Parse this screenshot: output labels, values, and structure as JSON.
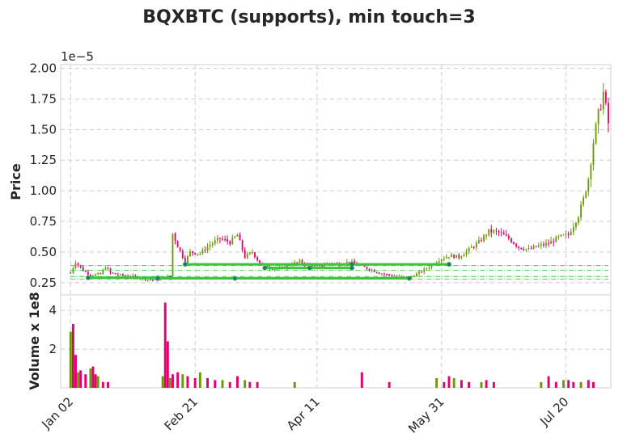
{
  "chart_data": {
    "type": "candlestick",
    "title": "BQXBTC (supports), min touch=3",
    "price_panel": {
      "ylabel": "Price",
      "exponent_label": "1e−5",
      "yticks": [
        0.25,
        0.5,
        0.75,
        1.0,
        1.25,
        1.5,
        1.75,
        2.0
      ],
      "ytick_labels": [
        "0.25",
        "0.50",
        "0.75",
        "1.00",
        "1.25",
        "1.50",
        "1.75",
        "2.00"
      ],
      "ylim": [
        0.15,
        2.03
      ],
      "grid": true
    },
    "volume_panel": {
      "ylabel": "Volume x 1e8",
      "yticks": [
        2,
        4
      ],
      "ytick_labels": [
        "2",
        "4"
      ],
      "ylim": [
        0,
        4.8
      ],
      "grid": true
    },
    "x_axis": {
      "tick_labels": [
        "Jan 02",
        "Feb 21",
        "Apr 11",
        "May 31",
        "Jul 20"
      ],
      "tick_days": [
        0,
        50,
        99,
        149,
        199
      ],
      "range_days": [
        -4,
        217
      ]
    },
    "colors": {
      "up": "#6a9a00",
      "down": "#e0006e",
      "support_line": "#3cc43c",
      "touch_point": "#1f6f8b",
      "level_line": "#3cc43c"
    },
    "support_levels": [
      {
        "from_day": 7,
        "to_day": 40,
        "price": 0.29,
        "touches": [
          7,
          35,
          40
        ]
      },
      {
        "from_day": 35,
        "to_day": 136,
        "price": 0.285,
        "touches": [
          35,
          66,
          136
        ]
      },
      {
        "from_day": 46,
        "to_day": 152,
        "price": 0.4,
        "touches": [
          46,
          113,
          152
        ]
      },
      {
        "from_day": 78,
        "to_day": 113,
        "price": 0.37,
        "touches": [
          78,
          96,
          113
        ]
      }
    ],
    "horizontal_levels": [
      0.39,
      0.35,
      0.3,
      0.28
    ],
    "price_path": [
      [
        0,
        0.33
      ],
      [
        2,
        0.42
      ],
      [
        5,
        0.35
      ],
      [
        8,
        0.31
      ],
      [
        12,
        0.32
      ],
      [
        14,
        0.38
      ],
      [
        16,
        0.33
      ],
      [
        20,
        0.31
      ],
      [
        25,
        0.3
      ],
      [
        30,
        0.28
      ],
      [
        34,
        0.27
      ],
      [
        37,
        0.29
      ],
      [
        40,
        0.3
      ],
      [
        41,
        0.65
      ],
      [
        43,
        0.55
      ],
      [
        46,
        0.42
      ],
      [
        48,
        0.5
      ],
      [
        52,
        0.49
      ],
      [
        56,
        0.56
      ],
      [
        60,
        0.61
      ],
      [
        64,
        0.58
      ],
      [
        67,
        0.64
      ],
      [
        70,
        0.46
      ],
      [
        73,
        0.5
      ],
      [
        76,
        0.41
      ],
      [
        80,
        0.37
      ],
      [
        84,
        0.36
      ],
      [
        88,
        0.4
      ],
      [
        92,
        0.42
      ],
      [
        96,
        0.39
      ],
      [
        100,
        0.38
      ],
      [
        104,
        0.41
      ],
      [
        108,
        0.4
      ],
      [
        112,
        0.42
      ],
      [
        116,
        0.39
      ],
      [
        120,
        0.36
      ],
      [
        124,
        0.33
      ],
      [
        128,
        0.31
      ],
      [
        132,
        0.3
      ],
      [
        136,
        0.29
      ],
      [
        140,
        0.33
      ],
      [
        144,
        0.38
      ],
      [
        148,
        0.44
      ],
      [
        152,
        0.47
      ],
      [
        156,
        0.46
      ],
      [
        160,
        0.52
      ],
      [
        164,
        0.58
      ],
      [
        168,
        0.67
      ],
      [
        172,
        0.66
      ],
      [
        176,
        0.61
      ],
      [
        180,
        0.54
      ],
      [
        184,
        0.52
      ],
      [
        188,
        0.55
      ],
      [
        192,
        0.57
      ],
      [
        196,
        0.62
      ],
      [
        200,
        0.64
      ],
      [
        202,
        0.72
      ],
      [
        204,
        0.8
      ],
      [
        206,
        0.93
      ],
      [
        208,
        1.1
      ],
      [
        210,
        1.4
      ],
      [
        212,
        1.62
      ],
      [
        214,
        1.8
      ],
      [
        216,
        1.55
      ]
    ],
    "volume_spikes": [
      [
        0,
        2.9
      ],
      [
        1,
        3.3
      ],
      [
        2,
        1.7
      ],
      [
        3,
        0.8
      ],
      [
        4,
        0.9
      ],
      [
        6,
        0.7
      ],
      [
        8,
        1.0
      ],
      [
        9,
        1.1
      ],
      [
        10,
        0.7
      ],
      [
        11,
        0.6
      ],
      [
        13,
        0.3
      ],
      [
        15,
        0.3
      ],
      [
        37,
        0.6
      ],
      [
        38,
        4.4
      ],
      [
        39,
        2.4
      ],
      [
        40,
        0.5
      ],
      [
        41,
        0.7
      ],
      [
        43,
        0.8
      ],
      [
        45,
        0.7
      ],
      [
        47,
        0.6
      ],
      [
        50,
        0.5
      ],
      [
        52,
        0.8
      ],
      [
        55,
        0.5
      ],
      [
        58,
        0.4
      ],
      [
        61,
        0.4
      ],
      [
        64,
        0.3
      ],
      [
        67,
        0.6
      ],
      [
        70,
        0.4
      ],
      [
        72,
        0.3
      ],
      [
        75,
        0.3
      ],
      [
        90,
        0.3
      ],
      [
        117,
        0.8
      ],
      [
        128,
        0.3
      ],
      [
        147,
        0.5
      ],
      [
        150,
        0.3
      ],
      [
        152,
        0.6
      ],
      [
        154,
        0.5
      ],
      [
        157,
        0.4
      ],
      [
        160,
        0.3
      ],
      [
        165,
        0.3
      ],
      [
        167,
        0.4
      ],
      [
        170,
        0.3
      ],
      [
        189,
        0.3
      ],
      [
        192,
        0.6
      ],
      [
        195,
        0.3
      ],
      [
        198,
        0.4
      ],
      [
        200,
        0.4
      ],
      [
        202,
        0.3
      ],
      [
        205,
        0.3
      ],
      [
        208,
        0.4
      ],
      [
        210,
        0.3
      ]
    ]
  }
}
